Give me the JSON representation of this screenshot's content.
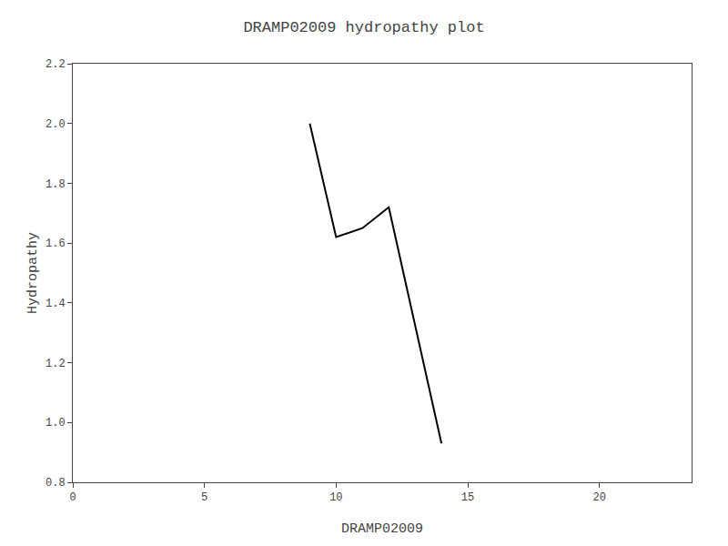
{
  "chart_data": {
    "type": "line",
    "title": "DRAMP02009 hydropathy plot",
    "xlabel": "DRAMP02009",
    "ylabel": "Hydropathy",
    "x": [
      9.0,
      10.0,
      11.0,
      12.0,
      14.0
    ],
    "values": [
      2.0,
      1.62,
      1.65,
      1.72,
      0.93
    ],
    "color": "#000000",
    "xlim": [
      0,
      23.5
    ],
    "xticks": [
      0,
      5,
      10,
      15,
      20
    ],
    "ylim": [
      0.8,
      2.2
    ],
    "yticks": [
      0.8,
      {
        "value": 1.0,
        "label": "1.0"
      },
      1.2,
      1.4,
      1.6,
      1.8,
      {
        "value": 2.0,
        "label": "2.0"
      },
      2.2
    ],
    "grid": false
  }
}
